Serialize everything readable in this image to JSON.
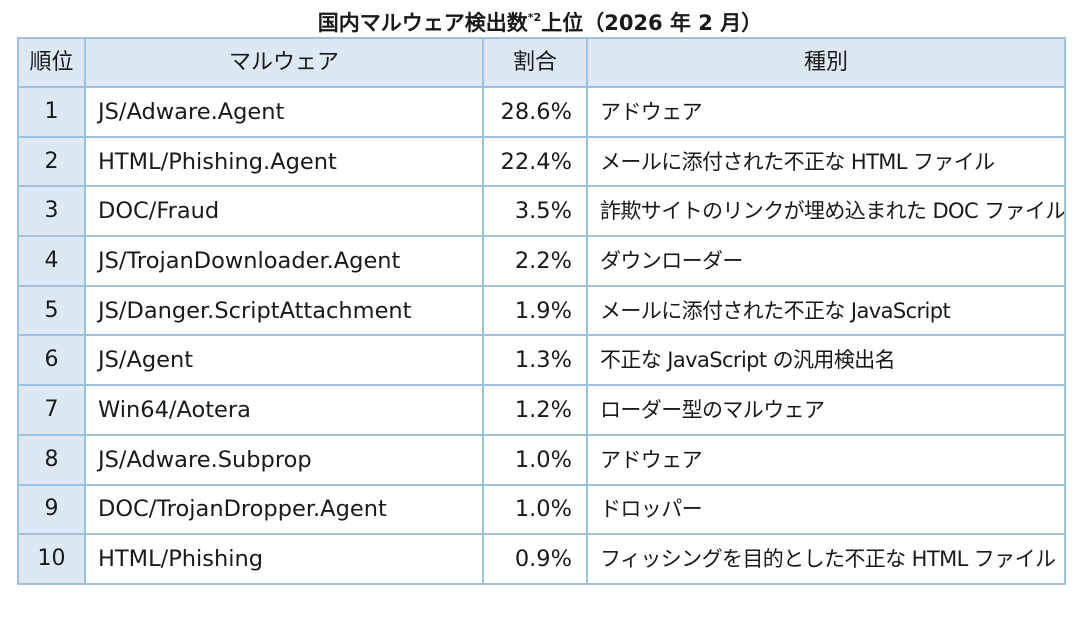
{
  "title": {
    "main": "国内マルウェア検出数",
    "note": "*2",
    "suffix": "上位（2026 年 2 月）"
  },
  "headers": {
    "rank": "順位",
    "malware": "マルウェア",
    "ratio": "割合",
    "type": "種別"
  },
  "rows": [
    {
      "rank": "1",
      "malware": "JS/Adware.Agent",
      "ratio": "28.6%",
      "type": "アドウェア"
    },
    {
      "rank": "2",
      "malware": "HTML/Phishing.Agent",
      "ratio": "22.4%",
      "type": "メールに添付された不正な HTML ファイル"
    },
    {
      "rank": "3",
      "malware": "DOC/Fraud",
      "ratio": "3.5%",
      "type": "詐欺サイトのリンクが埋め込まれた DOC ファイル"
    },
    {
      "rank": "4",
      "malware": "JS/TrojanDownloader.Agent",
      "ratio": "2.2%",
      "type": "ダウンローダー"
    },
    {
      "rank": "5",
      "malware": "JS/Danger.ScriptAttachment",
      "ratio": "1.9%",
      "type": "メールに添付された不正な JavaScript"
    },
    {
      "rank": "6",
      "malware": "JS/Agent",
      "ratio": "1.3%",
      "type": "不正な JavaScript の汎用検出名"
    },
    {
      "rank": "7",
      "malware": "Win64/Aotera",
      "ratio": "1.2%",
      "type": "ローダー型のマルウェア"
    },
    {
      "rank": "8",
      "malware": "JS/Adware.Subprop",
      "ratio": "1.0%",
      "type": "アドウェア"
    },
    {
      "rank": "9",
      "malware": "DOC/TrojanDropper.Agent",
      "ratio": "1.0%",
      "type": "ドロッパー"
    },
    {
      "rank": "10",
      "malware": "HTML/Phishing",
      "ratio": "0.9%",
      "type": "フィッシングを目的とした不正な HTML ファイル"
    }
  ]
}
